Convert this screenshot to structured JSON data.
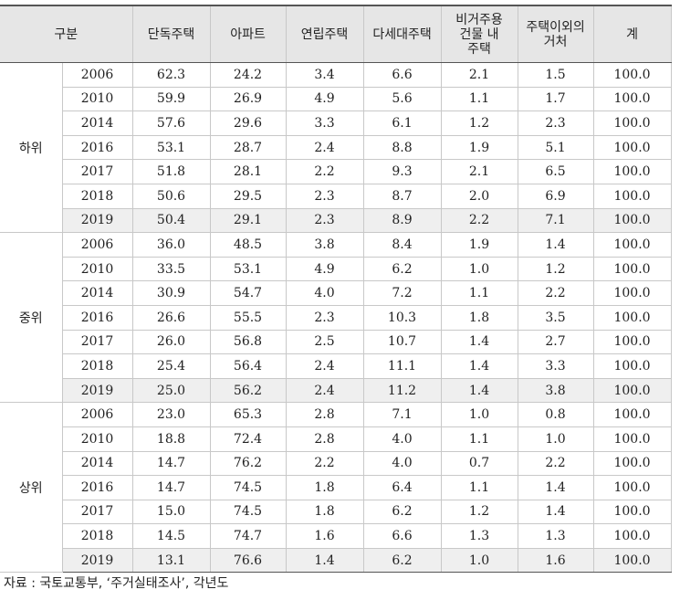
{
  "table": {
    "header": [
      "구분",
      "단독주택",
      "아파트",
      "연립주택",
      "다세대주택",
      [
        "비거주용",
        "건물 내",
        "주택"
      ],
      [
        "주택이외의",
        "거처"
      ],
      "계"
    ],
    "groups": [
      {
        "label": "하위",
        "rows": [
          [
            "2006",
            "62.3",
            "24.2",
            "3.4",
            "6.6",
            "2.1",
            "1.5",
            "100.0"
          ],
          [
            "2010",
            "59.9",
            "26.9",
            "4.9",
            "5.6",
            "1.1",
            "1.7",
            "100.0"
          ],
          [
            "2014",
            "57.6",
            "29.6",
            "3.3",
            "6.1",
            "1.2",
            "2.3",
            "100.0"
          ],
          [
            "2016",
            "53.1",
            "28.7",
            "2.4",
            "8.8",
            "1.9",
            "5.1",
            "100.0"
          ],
          [
            "2017",
            "51.8",
            "28.1",
            "2.2",
            "9.3",
            "2.1",
            "6.5",
            "100.0"
          ],
          [
            "2018",
            "50.6",
            "29.5",
            "2.3",
            "8.7",
            "2.0",
            "6.9",
            "100.0"
          ],
          [
            "2019",
            "50.4",
            "29.1",
            "2.3",
            "8.9",
            "2.2",
            "7.1",
            "100.0"
          ]
        ]
      },
      {
        "label": "중위",
        "rows": [
          [
            "2006",
            "36.0",
            "48.5",
            "3.8",
            "8.4",
            "1.9",
            "1.4",
            "100.0"
          ],
          [
            "2010",
            "33.5",
            "53.1",
            "4.9",
            "6.2",
            "1.0",
            "1.2",
            "100.0"
          ],
          [
            "2014",
            "30.9",
            "54.7",
            "4.0",
            "7.2",
            "1.1",
            "2.2",
            "100.0"
          ],
          [
            "2016",
            "26.6",
            "55.5",
            "2.3",
            "10.3",
            "1.8",
            "3.5",
            "100.0"
          ],
          [
            "2017",
            "26.0",
            "56.8",
            "2.5",
            "10.7",
            "1.4",
            "2.7",
            "100.0"
          ],
          [
            "2018",
            "25.4",
            "56.4",
            "2.4",
            "11.1",
            "1.4",
            "3.3",
            "100.0"
          ],
          [
            "2019",
            "25.0",
            "56.2",
            "2.4",
            "11.2",
            "1.4",
            "3.8",
            "100.0"
          ]
        ]
      },
      {
        "label": "상위",
        "rows": [
          [
            "2006",
            "23.0",
            "65.3",
            "2.8",
            "7.1",
            "1.0",
            "0.8",
            "100.0"
          ],
          [
            "2010",
            "18.8",
            "72.4",
            "2.8",
            "4.0",
            "1.1",
            "1.0",
            "100.0"
          ],
          [
            "2014",
            "14.7",
            "76.2",
            "2.2",
            "4.0",
            "0.7",
            "2.2",
            "100.0"
          ],
          [
            "2016",
            "14.7",
            "74.5",
            "1.8",
            "6.4",
            "1.1",
            "1.4",
            "100.0"
          ],
          [
            "2017",
            "15.0",
            "74.5",
            "1.8",
            "6.2",
            "1.2",
            "1.4",
            "100.0"
          ],
          [
            "2018",
            "14.5",
            "74.7",
            "1.6",
            "6.6",
            "1.3",
            "1.3",
            "100.0"
          ],
          [
            "2019",
            "13.1",
            "76.6",
            "1.4",
            "6.2",
            "1.0",
            "1.6",
            "100.0"
          ]
        ]
      }
    ]
  },
  "footer": "자료 : 국토교통부, ‘주거실태조사’, 각년도"
}
